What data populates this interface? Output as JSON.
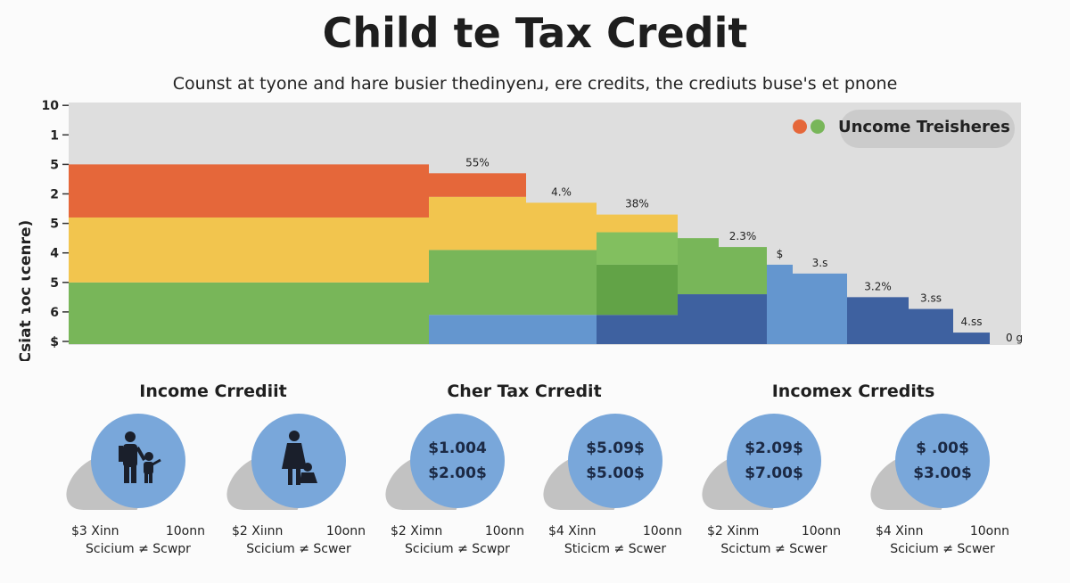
{
  "title": "Child te Tax Credit",
  "subtitle": "Counst at tyone and hare busier thedinyenɹ, ere  credits, the crediuts buse's et pnone",
  "chart_data": {
    "type": "area",
    "style": "stepped-stacked",
    "ylabel": "Csiat ɿoc ɩcenre)",
    "y_tick_labels": [
      "$",
      "6",
      "5",
      "4",
      "5",
      "2",
      "5",
      "1",
      "10"
    ],
    "ylim": [
      0,
      8
    ],
    "grid": false,
    "legend": {
      "label": "Uncome Treisheres",
      "position": "top-right",
      "colors": [
        "#e5673a",
        "#78b659"
      ]
    },
    "colors": {
      "orange": "#e5673a",
      "yellow": "#f2c54e",
      "green": "#78b659",
      "green_light": "#82bf5f",
      "green_dark": "#62a347",
      "blue": "#6496cf",
      "blue_dark": "#3e61a0"
    },
    "steps": [
      {
        "label": "",
        "layers": [
          {
            "color": "green",
            "top": 2.0
          },
          {
            "color": "yellow",
            "top": 4.2
          },
          {
            "color": "orange",
            "top": 6.0
          }
        ]
      },
      {
        "label": "55%",
        "layers": [
          {
            "color": "blue",
            "top": 0.9
          },
          {
            "color": "green",
            "top": 3.1
          },
          {
            "color": "yellow",
            "top": 4.9
          },
          {
            "color": "orange",
            "top": 5.7
          }
        ]
      },
      {
        "label": "4.%",
        "layers": [
          {
            "color": "blue",
            "top": 0.9
          },
          {
            "color": "green",
            "top": 3.1
          },
          {
            "color": "yellow",
            "top": 4.7
          }
        ]
      },
      {
        "label": "38%",
        "layers": [
          {
            "color": "blue_dark",
            "top": 0.9
          },
          {
            "color": "green_dark",
            "top": 2.6
          },
          {
            "color": "green_light",
            "top": 3.7
          },
          {
            "color": "yellow",
            "top": 4.3
          }
        ]
      },
      {
        "label": "",
        "layers": [
          {
            "color": "blue_dark",
            "top": 1.6
          },
          {
            "color": "green",
            "top": 3.5
          }
        ]
      },
      {
        "label": "2.3%",
        "layers": [
          {
            "color": "blue_dark",
            "top": 1.6
          },
          {
            "color": "green",
            "top": 3.2
          }
        ]
      },
      {
        "label": "$",
        "layers": [
          {
            "color": "blue",
            "top": 2.6
          }
        ]
      },
      {
        "label": "3.s",
        "layers": [
          {
            "color": "blue",
            "top": 2.3
          }
        ]
      },
      {
        "label": "3.2%",
        "layers": [
          {
            "color": "blue_dark",
            "top": 1.5
          }
        ]
      },
      {
        "label": "3.ss",
        "layers": [
          {
            "color": "blue_dark",
            "top": 1.1
          }
        ]
      },
      {
        "label": "4.ss",
        "layers": [
          {
            "color": "blue_dark",
            "top": 0.3
          }
        ]
      }
    ],
    "end_label": "0 g"
  },
  "sections": [
    {
      "heading": "Income Crrediit"
    },
    {
      "heading": "Cher Tax Crredit"
    },
    {
      "heading": "Incomex Crredits"
    }
  ],
  "cards": [
    {
      "icon": "parent-child-icon",
      "line1_left": "$3 Xinn",
      "line1_right": "10onn",
      "line2": "Scicium ≠ Scwpr"
    },
    {
      "icon": "mother-baby-icon",
      "line1_left": "$2 Xiınn",
      "line1_right": "10onn",
      "line2": "Scicium ≠ Scwer"
    },
    {
      "amount1": "$1.004",
      "amount2": "$2.00$",
      "line1_left": "$2 Ximn",
      "line1_right": "10onn",
      "line2": "Scicium ≠ Scwpr"
    },
    {
      "amount1": "$5.09$",
      "amount2": "$5.00$",
      "line1_left": "$4 Xinn",
      "line1_right": "10onn",
      "line2": "Sticicm ≠ Scwer"
    },
    {
      "amount1": "$2.09$",
      "amount2": "$7.00$",
      "line1_left": "$2 Xinm",
      "line1_right": "10onn",
      "line2": "Scictum ≠ Scwer"
    },
    {
      "amount1": "$ .00$",
      "amount2": "$3.00$",
      "line1_left": "$4 Xinn",
      "line1_right": "10onn",
      "line2": "Scicium ≠ Scwer"
    }
  ]
}
